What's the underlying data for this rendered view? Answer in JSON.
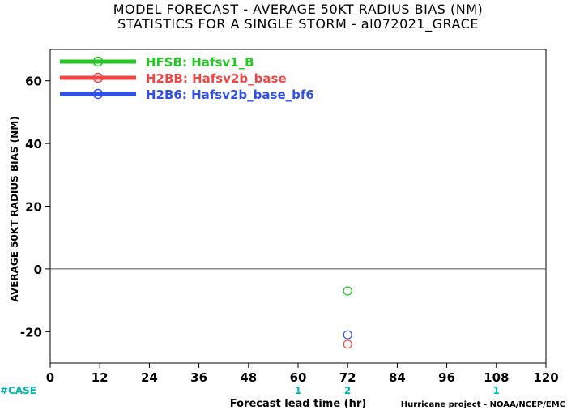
{
  "chart_data": {
    "type": "scatter",
    "title": "MODEL FORECAST - AVERAGE 50KT RADIUS BIAS (NM)",
    "subtitle": "STATISTICS FOR A SINGLE STORM - al072021_GRACE",
    "xlabel": "Forecast lead time (hr)",
    "ylabel": "AVERAGE 50KT RADIUS BIAS (NM)",
    "xlim": [
      0,
      120
    ],
    "ylim": [
      -30,
      70
    ],
    "xticks": [
      0,
      12,
      24,
      36,
      48,
      60,
      72,
      84,
      96,
      108,
      120
    ],
    "yticks": [
      -20,
      0,
      20,
      40,
      60
    ],
    "grid": false,
    "legend_position": "top-left",
    "zero_line": true,
    "series": [
      {
        "name": "HFSB: Hafsv1_B",
        "color": "#22c722",
        "x": [
          72
        ],
        "y": [
          -7
        ]
      },
      {
        "name": "H2BB: Hafsv2b_base",
        "color": "#f04646",
        "x": [
          72
        ],
        "y": [
          -24
        ]
      },
      {
        "name": "H2B6: Hafsv2b_base_bf6",
        "color": "#3050e8",
        "x": [
          72
        ],
        "y": [
          -21
        ]
      }
    ],
    "case_counts": {
      "label": "#CASE",
      "color": "#00b4b4",
      "items": [
        {
          "x": 60,
          "count": "1"
        },
        {
          "x": 72,
          "count": "2"
        },
        {
          "x": 108,
          "count": "1"
        }
      ]
    }
  },
  "credit": "Hurricane project - NOAA/NCEP/EMC"
}
